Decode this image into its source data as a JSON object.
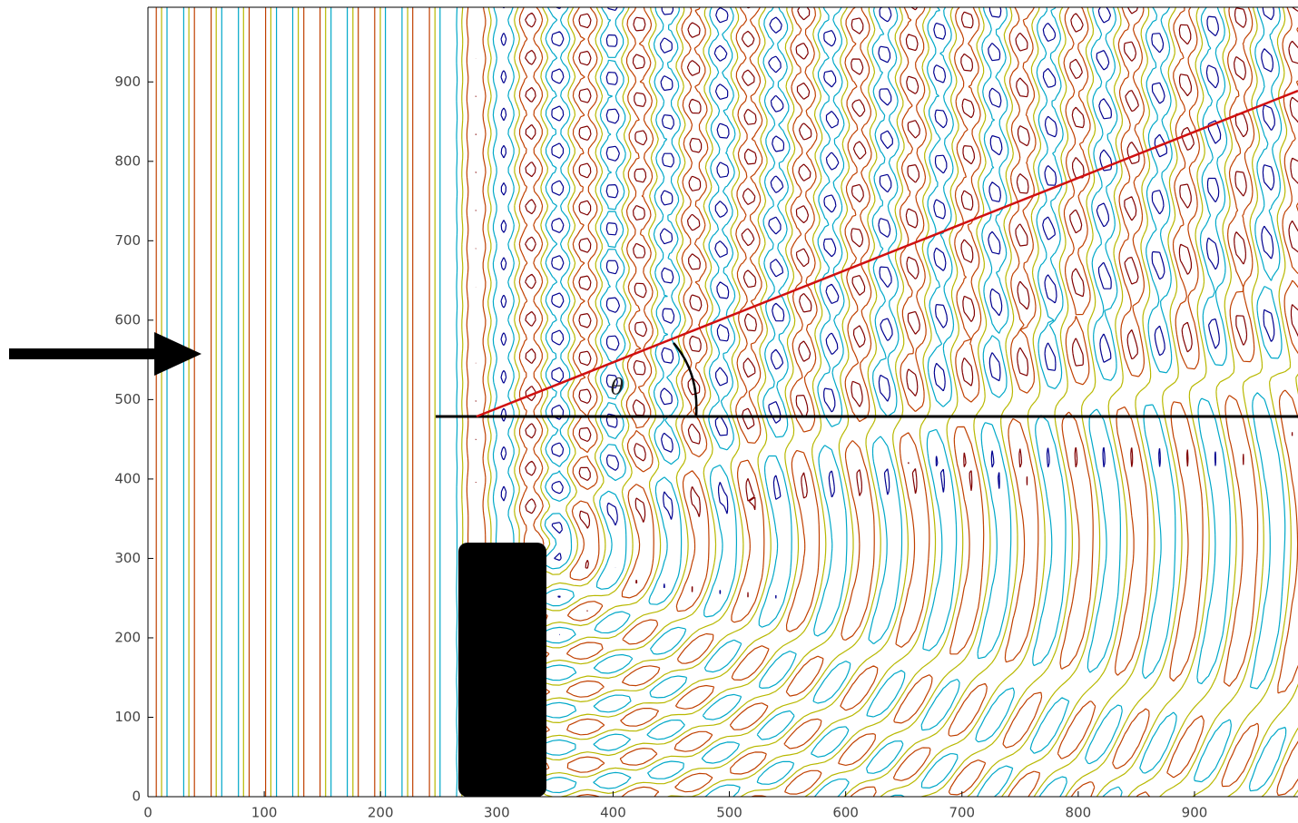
{
  "chart_data": {
    "type": "contour",
    "xlim": [
      0,
      989
    ],
    "ylim": [
      0,
      994
    ],
    "xticks": [
      0,
      100,
      200,
      300,
      400,
      500,
      600,
      700,
      800,
      900
    ],
    "yticks": [
      0,
      100,
      200,
      300,
      400,
      500,
      600,
      700,
      800,
      900
    ],
    "colors": [
      "#00008f",
      "#00a8c8",
      "#b8b800",
      "#c04000",
      "#800000"
    ],
    "annotation": "θ"
  }
}
